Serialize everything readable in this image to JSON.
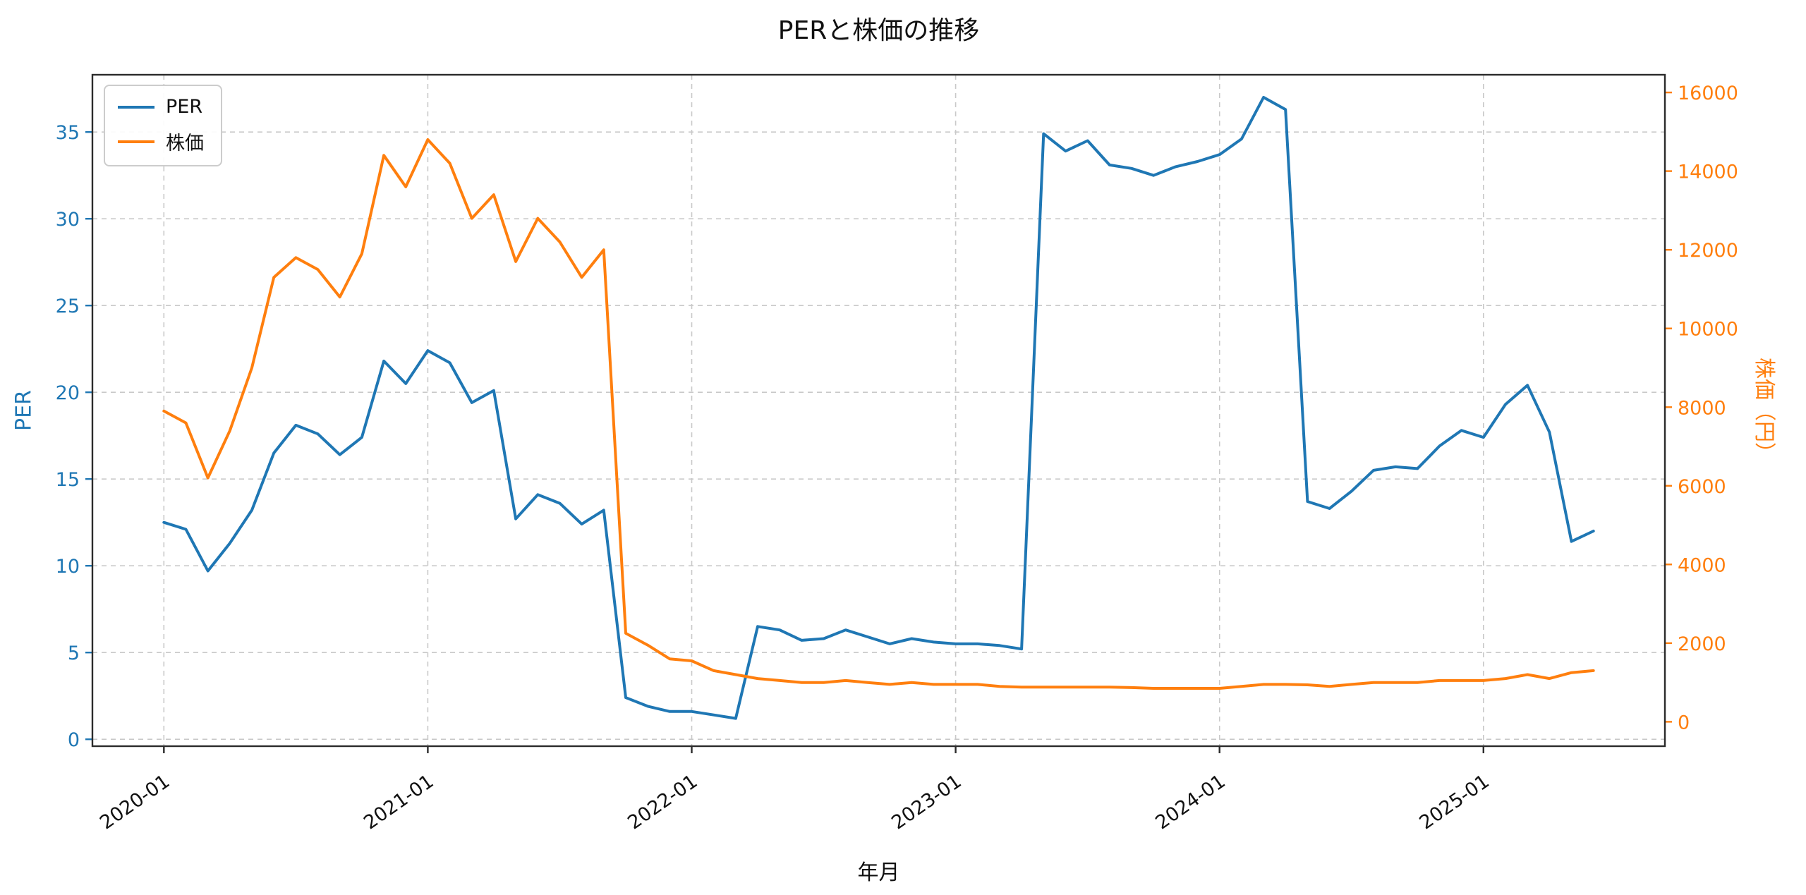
{
  "chart_data": {
    "type": "line",
    "title": "PERと株価の推移",
    "xlabel": "年月",
    "ylabel_left": "PER",
    "ylabel_right": "株価（円）",
    "legend_position": "upper-left",
    "grid": "dashed",
    "x_tick_labels": [
      "2020-01",
      "2021-01",
      "2022-01",
      "2023-01",
      "2024-01",
      "2025-01"
    ],
    "x_tick_indices": [
      0,
      12,
      24,
      36,
      48,
      60
    ],
    "y_ticks_left": [
      0,
      5,
      10,
      15,
      20,
      25,
      30,
      35
    ],
    "y_ticks_right": [
      0,
      2000,
      4000,
      6000,
      8000,
      10000,
      12000,
      14000,
      16000
    ],
    "ylim_left": [
      -0.4,
      38.3
    ],
    "ylim_right": [
      -620,
      16450
    ],
    "xlim_index": [
      -3.25,
      68.25
    ],
    "months": [
      "2020-01",
      "2020-02",
      "2020-03",
      "2020-04",
      "2020-05",
      "2020-06",
      "2020-07",
      "2020-08",
      "2020-09",
      "2020-10",
      "2020-11",
      "2020-12",
      "2021-01",
      "2021-02",
      "2021-03",
      "2021-04",
      "2021-05",
      "2021-06",
      "2021-07",
      "2021-08",
      "2021-09",
      "2021-10",
      "2021-11",
      "2021-12",
      "2022-01",
      "2022-02",
      "2022-03",
      "2022-04",
      "2022-05",
      "2022-06",
      "2022-07",
      "2022-08",
      "2022-09",
      "2022-10",
      "2022-11",
      "2022-12",
      "2023-01",
      "2023-02",
      "2023-03",
      "2023-04",
      "2023-05",
      "2023-06",
      "2023-07",
      "2023-08",
      "2023-09",
      "2023-10",
      "2023-11",
      "2023-12",
      "2024-01",
      "2024-02",
      "2024-03",
      "2024-04",
      "2024-05",
      "2024-06",
      "2024-07",
      "2024-08",
      "2024-09",
      "2024-10",
      "2024-11",
      "2024-12",
      "2025-01",
      "2025-02",
      "2025-03",
      "2025-04",
      "2025-05",
      "2025-06"
    ],
    "series": [
      {
        "name": "PER",
        "axis": "left",
        "color": "#1f77b4",
        "values": [
          12.5,
          12.1,
          9.7,
          11.3,
          13.2,
          16.5,
          18.1,
          17.6,
          16.4,
          17.4,
          21.8,
          20.5,
          22.4,
          21.7,
          19.4,
          20.1,
          12.7,
          14.1,
          13.6,
          12.4,
          13.2,
          2.4,
          1.9,
          1.6,
          1.6,
          1.4,
          1.2,
          6.5,
          6.3,
          5.7,
          5.8,
          6.3,
          5.9,
          5.5,
          5.8,
          5.6,
          5.5,
          5.5,
          5.4,
          5.2,
          34.9,
          33.9,
          34.5,
          33.1,
          32.9,
          32.5,
          33.0,
          33.3,
          33.7,
          34.6,
          37.0,
          36.3,
          13.7,
          13.3,
          14.3,
          15.5,
          15.7,
          15.6,
          16.9,
          17.8,
          17.4,
          19.3,
          20.4,
          17.7,
          11.4,
          12.0
        ]
      },
      {
        "name": "株価",
        "axis": "right",
        "color": "#ff7f0e",
        "values": [
          7900,
          7600,
          6200,
          7400,
          9000,
          11300,
          11800,
          11500,
          10800,
          11900,
          14400,
          13600,
          14800,
          14200,
          12800,
          13400,
          11700,
          12800,
          12200,
          11300,
          12000,
          2250,
          1950,
          1600,
          1550,
          1300,
          1200,
          1100,
          1050,
          1000,
          1000,
          1050,
          1000,
          950,
          1000,
          950,
          950,
          950,
          900,
          880,
          880,
          880,
          880,
          880,
          870,
          850,
          850,
          850,
          850,
          900,
          950,
          950,
          940,
          900,
          950,
          1000,
          1000,
          1000,
          1050,
          1050,
          1050,
          1100,
          1200,
          1100,
          1250,
          1300
        ]
      }
    ],
    "colors": {
      "per_line": "#1f77b4",
      "kabuka_line": "#ff7f0e",
      "grid": "#c9c9c9",
      "spine": "#2b2b2b",
      "text": "#111111"
    }
  }
}
